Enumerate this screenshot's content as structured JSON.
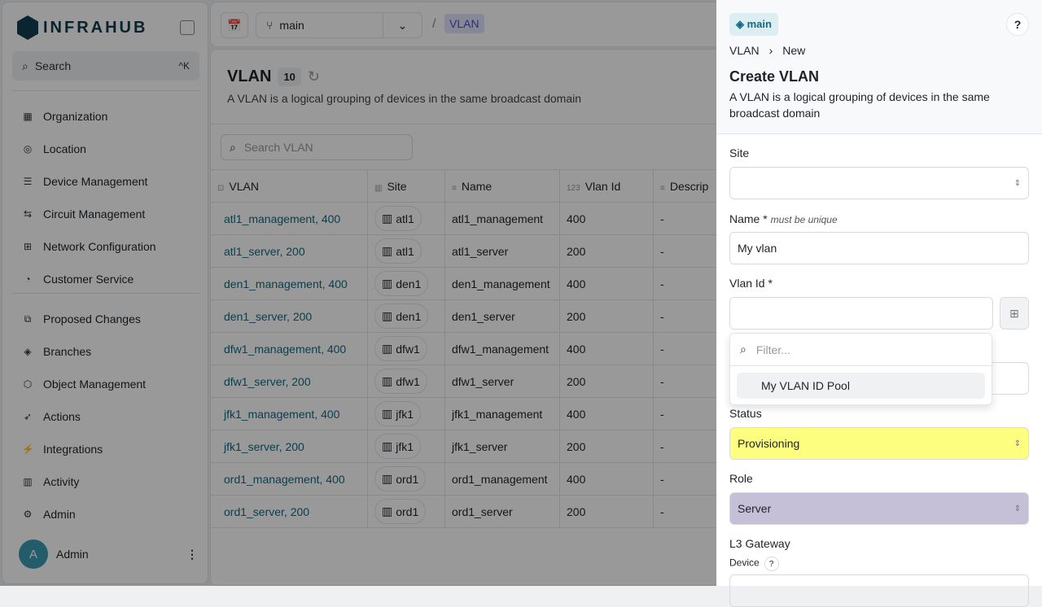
{
  "app": {
    "name": "INFRAHUB",
    "search_label": "Search",
    "search_shortcut": "^K"
  },
  "sidebar": {
    "items": [
      {
        "label": "Organization",
        "icon": "building-icon",
        "glyph": "▦"
      },
      {
        "label": "Location",
        "icon": "map-pin-icon",
        "glyph": "◎"
      },
      {
        "label": "Device Management",
        "icon": "server-icon",
        "glyph": "☰"
      },
      {
        "label": "Circuit Management",
        "icon": "circuit-icon",
        "glyph": "⇆"
      },
      {
        "label": "Network Configuration",
        "icon": "network-icon",
        "glyph": "⊞"
      },
      {
        "label": "Customer Service",
        "icon": "gauge-icon",
        "glyph": "◔"
      }
    ],
    "bottom_items": [
      {
        "label": "Proposed Changes",
        "icon": "proposed-changes-icon",
        "glyph": "⧉"
      },
      {
        "label": "Branches",
        "icon": "layers-icon",
        "glyph": "◈"
      },
      {
        "label": "Object Management",
        "icon": "cube-icon",
        "glyph": "⬡"
      },
      {
        "label": "Actions",
        "icon": "rocket-icon",
        "glyph": "➶"
      },
      {
        "label": "Integrations",
        "icon": "plug-icon",
        "glyph": "⚡"
      },
      {
        "label": "Activity",
        "icon": "bar-chart-icon",
        "glyph": "▥"
      },
      {
        "label": "Admin",
        "icon": "gear-icon",
        "glyph": "⚙"
      }
    ],
    "user": {
      "initial": "A",
      "name": "Admin"
    }
  },
  "topbar": {
    "branch": "main",
    "breadcrumb": "VLAN"
  },
  "main": {
    "title": "VLAN",
    "count": "10",
    "description": "A VLAN is a logical grouping of devices in the same broadcast domain",
    "search_placeholder": "Search VLAN",
    "columns": [
      "VLAN",
      "Site",
      "Name",
      "Vlan Id",
      "Descrip"
    ],
    "rows": [
      [
        "atl1_management, 400",
        "atl1",
        "atl1_management",
        "400",
        "-"
      ],
      [
        "atl1_server, 200",
        "atl1",
        "atl1_server",
        "200",
        "-"
      ],
      [
        "den1_management, 400",
        "den1",
        "den1_management",
        "400",
        "-"
      ],
      [
        "den1_server, 200",
        "den1",
        "den1_server",
        "200",
        "-"
      ],
      [
        "dfw1_management, 400",
        "dfw1",
        "dfw1_management",
        "400",
        "-"
      ],
      [
        "dfw1_server, 200",
        "dfw1",
        "dfw1_server",
        "200",
        "-"
      ],
      [
        "jfk1_management, 400",
        "jfk1",
        "jfk1_management",
        "400",
        "-"
      ],
      [
        "jfk1_server, 200",
        "jfk1",
        "jfk1_server",
        "200",
        "-"
      ],
      [
        "ord1_management, 400",
        "ord1",
        "ord1_management",
        "400",
        "-"
      ],
      [
        "ord1_server, 200",
        "ord1",
        "ord1_server",
        "200",
        "-"
      ]
    ]
  },
  "panel": {
    "branch": "main",
    "help": "?",
    "crumb": [
      "VLAN",
      "New"
    ],
    "title": "Create VLAN",
    "description": "A VLAN is a logical grouping of devices in the same broadcast domain",
    "site_label": "Site",
    "site_value": "",
    "name_label": "Name *",
    "name_hint": "must be unique",
    "name_value": "My vlan",
    "vlan_id_label": "Vlan Id *",
    "vlan_id_value": "",
    "filter_placeholder": "Filter...",
    "pool_option": "My VLAN ID Pool",
    "status_label": "Status",
    "status_value": "Provisioning",
    "status_color": "#fdfd80",
    "role_label": "Role",
    "role_value": "Server",
    "role_color": "#c5bfd8",
    "l3_label": "L3 Gateway",
    "device_label": "Device"
  }
}
